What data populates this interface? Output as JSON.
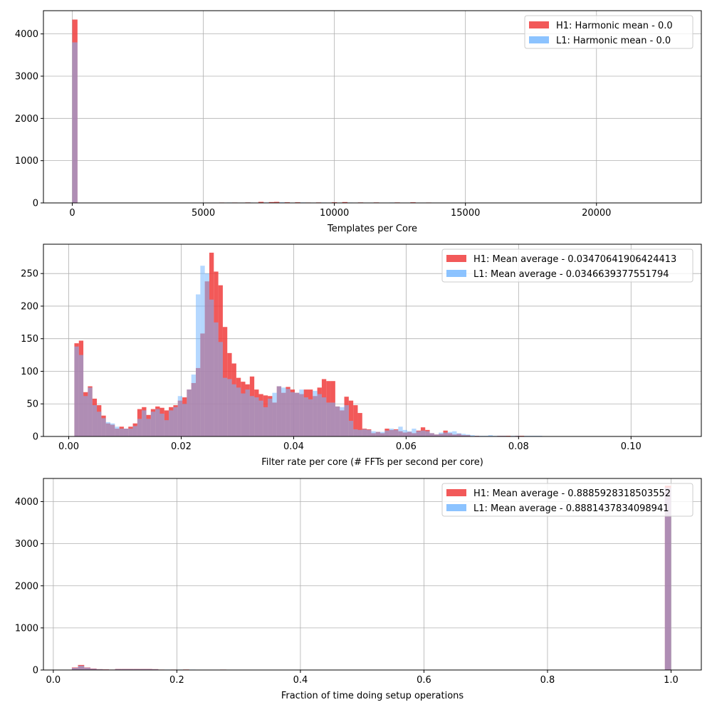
{
  "colors": {
    "h1": "#f03c3c",
    "l1": "#78b8ff",
    "overlap": "#8888c4",
    "grid": "#b0b0b0",
    "axis": "#000000"
  },
  "chart_data": [
    {
      "type": "bar",
      "subtype": "histogram",
      "xlabel": "Templates per Core",
      "xlim": [
        -1100,
        24000
      ],
      "ylim": [
        0,
        4550
      ],
      "xticks": [
        0,
        5000,
        10000,
        15000,
        20000
      ],
      "yticks": [
        0,
        1000,
        2000,
        3000,
        4000
      ],
      "grid": true,
      "legend_position": "top-right",
      "bin_width": 200,
      "series": [
        {
          "name": "H1: Harmonic mean  - 0.0",
          "color": "#f03c3c",
          "bins": [
            [
              100,
              4340
            ],
            [
              5700,
              10
            ],
            [
              6200,
              10
            ],
            [
              6700,
              12
            ],
            [
              7200,
              25
            ],
            [
              7600,
              20
            ],
            [
              7800,
              25
            ],
            [
              8200,
              15
            ],
            [
              8600,
              15
            ],
            [
              9000,
              10
            ],
            [
              9400,
              12
            ],
            [
              10000,
              15
            ],
            [
              10400,
              20
            ],
            [
              11000,
              12
            ],
            [
              11600,
              12
            ],
            [
              12400,
              12
            ],
            [
              13000,
              15
            ],
            [
              13600,
              10
            ]
          ]
        },
        {
          "name": "L1: Harmonic mean  - 0.0",
          "color": "#78b8ff",
          "bins": [
            [
              100,
              3800
            ],
            [
              6000,
              10
            ],
            [
              6800,
              10
            ],
            [
              7400,
              12
            ],
            [
              8000,
              15
            ],
            [
              8800,
              12
            ],
            [
              9600,
              10
            ],
            [
              10600,
              10
            ],
            [
              11400,
              8
            ],
            [
              12200,
              10
            ],
            [
              12800,
              8
            ]
          ]
        }
      ]
    },
    {
      "type": "bar",
      "subtype": "histogram",
      "xlabel": "Filter rate per core (# FFTs per second per core)",
      "xlim": [
        -0.0045,
        0.1125
      ],
      "ylim": [
        0,
        295
      ],
      "xticks": [
        0.0,
        0.02,
        0.04,
        0.06,
        0.08,
        0.1
      ],
      "yticks": [
        0,
        50,
        100,
        150,
        200,
        250
      ],
      "grid": true,
      "legend_position": "top-right",
      "bin_start": 0.001,
      "bin_width": 0.0008,
      "series": [
        {
          "name": "H1: Mean average - 0.03470641906424413",
          "color": "#f03c3c",
          "values": [
            143,
            147,
            68,
            77,
            58,
            48,
            32,
            20,
            18,
            12,
            15,
            12,
            15,
            20,
            42,
            45,
            33,
            42,
            46,
            44,
            40,
            45,
            48,
            55,
            60,
            72,
            82,
            105,
            158,
            238,
            282,
            253,
            232,
            168,
            128,
            112,
            90,
            84,
            80,
            92,
            72,
            65,
            63,
            62,
            52,
            77,
            67,
            76,
            72,
            67,
            65,
            72,
            72,
            62,
            75,
            88,
            85,
            85,
            46,
            40,
            61,
            55,
            48,
            36,
            12,
            11,
            5,
            7,
            5,
            12,
            10,
            11,
            8,
            6,
            7,
            5,
            9,
            14,
            10,
            5,
            3,
            4,
            9,
            5,
            3,
            4,
            2,
            2,
            0,
            1,
            0,
            0,
            0,
            0,
            1,
            1,
            1,
            0,
            1,
            1,
            0,
            0,
            0,
            0,
            0,
            0
          ]
        },
        {
          "name": "L1: Mean average - 0.0346639377551794",
          "color": "#78b8ff",
          "values": [
            138,
            125,
            62,
            75,
            48,
            38,
            28,
            22,
            20,
            15,
            12,
            12,
            12,
            16,
            27,
            40,
            27,
            38,
            42,
            35,
            25,
            40,
            45,
            62,
            50,
            72,
            95,
            218,
            262,
            250,
            210,
            175,
            145,
            90,
            88,
            80,
            75,
            66,
            72,
            62,
            60,
            55,
            45,
            58,
            67,
            77,
            75,
            73,
            68,
            67,
            72,
            60,
            57,
            70,
            65,
            60,
            52,
            52,
            46,
            45,
            48,
            24,
            11,
            10,
            11,
            10,
            8,
            7,
            7,
            9,
            12,
            10,
            15,
            10,
            8,
            12,
            8,
            9,
            8,
            5,
            3,
            6,
            6,
            7,
            8,
            5,
            4,
            3,
            2,
            1,
            1,
            1,
            2,
            1,
            1,
            1,
            0,
            1,
            1,
            0,
            1,
            1,
            1,
            1,
            0,
            0
          ]
        }
      ]
    },
    {
      "type": "bar",
      "subtype": "histogram",
      "xlabel": "Fraction of time doing setup operations",
      "xlim": [
        -0.016,
        1.049
      ],
      "ylim": [
        0,
        4550
      ],
      "xticks": [
        0.0,
        0.2,
        0.4,
        0.6,
        0.8,
        1.0
      ],
      "yticks": [
        0,
        1000,
        2000,
        3000,
        4000
      ],
      "grid": true,
      "legend_position": "top-right",
      "bin_width": 0.01,
      "series": [
        {
          "name": "H1: Mean average - 0.8885928318503552",
          "color": "#f03c3c",
          "bins": [
            [
              0.035,
              60
            ],
            [
              0.045,
              120
            ],
            [
              0.055,
              60
            ],
            [
              0.065,
              35
            ],
            [
              0.075,
              20
            ],
            [
              0.085,
              15
            ],
            [
              0.095,
              10
            ],
            [
              0.105,
              25
            ],
            [
              0.115,
              25
            ],
            [
              0.125,
              25
            ],
            [
              0.135,
              25
            ],
            [
              0.145,
              25
            ],
            [
              0.155,
              25
            ],
            [
              0.165,
              20
            ],
            [
              0.175,
              10
            ],
            [
              0.195,
              10
            ],
            [
              0.215,
              12
            ],
            [
              0.235,
              8
            ],
            [
              0.275,
              10
            ],
            [
              0.295,
              8
            ],
            [
              0.315,
              8
            ],
            [
              0.995,
              4380
            ]
          ]
        },
        {
          "name": "L1: Mean average - 0.8881437834098941",
          "color": "#78b8ff",
          "bins": [
            [
              0.035,
              50
            ],
            [
              0.045,
              100
            ],
            [
              0.055,
              55
            ],
            [
              0.065,
              30
            ],
            [
              0.075,
              18
            ],
            [
              0.085,
              12
            ],
            [
              0.095,
              10
            ],
            [
              0.105,
              22
            ],
            [
              0.115,
              22
            ],
            [
              0.125,
              22
            ],
            [
              0.135,
              22
            ],
            [
              0.145,
              22
            ],
            [
              0.155,
              22
            ],
            [
              0.165,
              18
            ],
            [
              0.185,
              10
            ],
            [
              0.205,
              10
            ],
            [
              0.225,
              10
            ],
            [
              0.245,
              8
            ],
            [
              0.995,
              4330
            ]
          ]
        }
      ]
    }
  ]
}
